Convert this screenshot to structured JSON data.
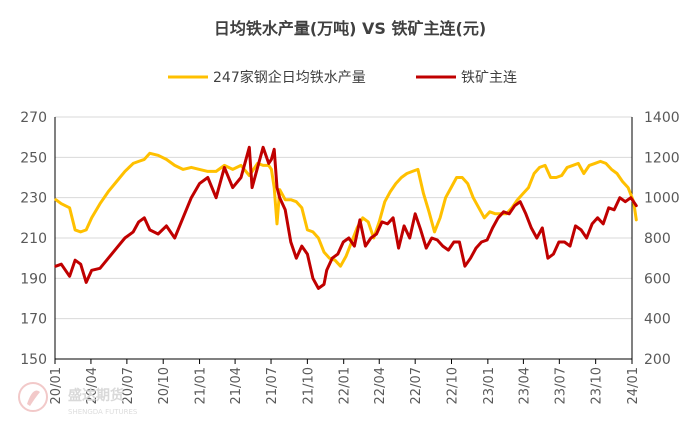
{
  "chart_data": {
    "type": "line",
    "title": "日均铁水产量(万吨) VS 铁矿主连(元)",
    "legend_position": "top",
    "grid": true,
    "y_left": {
      "min": 150,
      "max": 270,
      "ticks": [
        150,
        170,
        190,
        210,
        230,
        250,
        270
      ]
    },
    "y_right": {
      "min": 200,
      "max": 1400,
      "ticks": [
        200,
        400,
        600,
        800,
        1000,
        1200,
        1400
      ]
    },
    "x_labels": [
      "20/01",
      "20/04",
      "20/07",
      "20/10",
      "21/01",
      "21/04",
      "21/07",
      "21/10",
      "22/01",
      "22/04",
      "22/07",
      "22/10",
      "23/01",
      "23/04",
      "23/07",
      "23/10",
      "24/01"
    ],
    "series": [
      {
        "name": "247家钢企日均铁水产量",
        "axis": "left",
        "color": "#FFC000",
        "x": [
          "2020-01-03",
          "2020-01-17",
          "2020-02-07",
          "2020-02-21",
          "2020-03-06",
          "2020-03-20",
          "2020-04-03",
          "2020-04-24",
          "2020-05-15",
          "2020-06-05",
          "2020-06-26",
          "2020-07-17",
          "2020-07-31",
          "2020-08-14",
          "2020-08-28",
          "2020-09-18",
          "2020-10-09",
          "2020-10-30",
          "2020-11-20",
          "2020-12-11",
          "2021-01-01",
          "2021-01-22",
          "2021-02-12",
          "2021-03-05",
          "2021-03-26",
          "2021-04-16",
          "2021-05-07",
          "2021-05-28",
          "2021-06-11",
          "2021-06-25",
          "2021-07-02",
          "2021-07-09",
          "2021-07-16",
          "2021-07-23",
          "2021-08-06",
          "2021-08-20",
          "2021-09-03",
          "2021-09-17",
          "2021-10-01",
          "2021-10-15",
          "2021-10-29",
          "2021-11-12",
          "2021-11-26",
          "2021-12-10",
          "2021-12-24",
          "2022-01-07",
          "2022-01-21",
          "2022-02-04",
          "2022-02-18",
          "2022-03-04",
          "2022-03-18",
          "2022-04-01",
          "2022-04-15",
          "2022-04-29",
          "2022-05-13",
          "2022-05-27",
          "2022-06-10",
          "2022-06-24",
          "2022-07-08",
          "2022-07-22",
          "2022-08-05",
          "2022-08-19",
          "2022-09-02",
          "2022-09-16",
          "2022-09-30",
          "2022-10-14",
          "2022-10-28",
          "2022-11-11",
          "2022-11-25",
          "2022-12-09",
          "2022-12-23",
          "2023-01-06",
          "2023-01-20",
          "2023-02-03",
          "2023-02-17",
          "2023-03-03",
          "2023-03-17",
          "2023-03-31",
          "2023-04-14",
          "2023-04-28",
          "2023-05-12",
          "2023-05-26",
          "2023-06-09",
          "2023-06-23",
          "2023-07-07",
          "2023-07-21",
          "2023-08-04",
          "2023-08-18",
          "2023-09-01",
          "2023-09-15",
          "2023-09-29",
          "2023-10-13",
          "2023-10-27",
          "2023-11-10",
          "2023-11-24",
          "2023-12-08",
          "2023-12-22",
          "2024-01-05",
          "2024-01-12"
        ],
        "values": [
          229,
          227,
          225,
          214,
          213,
          214,
          220,
          227,
          233,
          238,
          243,
          247,
          248,
          249,
          252,
          251,
          249,
          246,
          244,
          245,
          244,
          243,
          243,
          246,
          244,
          246,
          241,
          247,
          246,
          246,
          244,
          235,
          217,
          234,
          229,
          229,
          228,
          225,
          214,
          213,
          210,
          203,
          200,
          199,
          196,
          201,
          208,
          215,
          220,
          218,
          210,
          218,
          228,
          233,
          237,
          240,
          242,
          243,
          244,
          232,
          223,
          213,
          220,
          230,
          235,
          240,
          240,
          237,
          230,
          225,
          220,
          223,
          222,
          222,
          222,
          225,
          229,
          232,
          235,
          242,
          245,
          246,
          240,
          240,
          241,
          245,
          246,
          247,
          242,
          246,
          247,
          248,
          247,
          244,
          242,
          238,
          235,
          228,
          219
        ]
      },
      {
        "name": "铁矿主连",
        "axis": "right",
        "color": "#C00000",
        "x": [
          "2020-01-03",
          "2020-01-17",
          "2020-02-07",
          "2020-02-21",
          "2020-03-06",
          "2020-03-20",
          "2020-04-03",
          "2020-04-24",
          "2020-05-15",
          "2020-06-05",
          "2020-06-26",
          "2020-07-17",
          "2020-07-31",
          "2020-08-14",
          "2020-08-28",
          "2020-09-18",
          "2020-10-09",
          "2020-10-30",
          "2020-11-20",
          "2020-12-11",
          "2021-01-01",
          "2021-01-22",
          "2021-02-12",
          "2021-03-05",
          "2021-03-26",
          "2021-04-16",
          "2021-05-07",
          "2021-05-14",
          "2021-05-28",
          "2021-06-11",
          "2021-06-25",
          "2021-07-02",
          "2021-07-09",
          "2021-07-16",
          "2021-07-23",
          "2021-08-06",
          "2021-08-20",
          "2021-09-03",
          "2021-09-17",
          "2021-10-01",
          "2021-10-15",
          "2021-10-29",
          "2021-11-12",
          "2021-11-19",
          "2021-12-03",
          "2021-12-17",
          "2021-12-31",
          "2022-01-14",
          "2022-01-28",
          "2022-02-11",
          "2022-02-25",
          "2022-03-11",
          "2022-03-25",
          "2022-04-08",
          "2022-04-22",
          "2022-05-06",
          "2022-05-20",
          "2022-06-03",
          "2022-06-17",
          "2022-07-01",
          "2022-07-15",
          "2022-07-29",
          "2022-08-12",
          "2022-08-26",
          "2022-09-09",
          "2022-09-23",
          "2022-10-07",
          "2022-10-21",
          "2022-11-04",
          "2022-11-18",
          "2022-12-02",
          "2022-12-16",
          "2022-12-30",
          "2023-01-13",
          "2023-01-27",
          "2023-02-10",
          "2023-02-24",
          "2023-03-10",
          "2023-03-24",
          "2023-04-07",
          "2023-04-21",
          "2023-05-05",
          "2023-05-19",
          "2023-06-02",
          "2023-06-16",
          "2023-06-30",
          "2023-07-14",
          "2023-07-28",
          "2023-08-11",
          "2023-08-25",
          "2023-09-08",
          "2023-09-22",
          "2023-10-06",
          "2023-10-20",
          "2023-11-03",
          "2023-11-17",
          "2023-12-01",
          "2023-12-15",
          "2023-12-29",
          "2024-01-12"
        ],
        "values": [
          660,
          670,
          610,
          690,
          670,
          580,
          640,
          650,
          700,
          750,
          800,
          830,
          880,
          900,
          840,
          820,
          860,
          800,
          900,
          1000,
          1070,
          1100,
          1000,
          1150,
          1050,
          1100,
          1250,
          1050,
          1150,
          1250,
          1170,
          1190,
          1240,
          1050,
          1000,
          940,
          780,
          700,
          760,
          720,
          600,
          550,
          570,
          640,
          700,
          720,
          780,
          800,
          760,
          890,
          760,
          800,
          820,
          880,
          870,
          900,
          750,
          860,
          800,
          920,
          840,
          750,
          800,
          790,
          760,
          740,
          780,
          780,
          660,
          700,
          750,
          780,
          790,
          850,
          900,
          930,
          920,
          960,
          980,
          920,
          850,
          800,
          850,
          700,
          720,
          780,
          780,
          760,
          860,
          840,
          800,
          870,
          900,
          870,
          950,
          940,
          1000,
          980,
          1000,
          960
        ]
      }
    ]
  },
  "watermark": {
    "brand": "盛达期货",
    "sub": "SHENGDA FUTURES"
  }
}
